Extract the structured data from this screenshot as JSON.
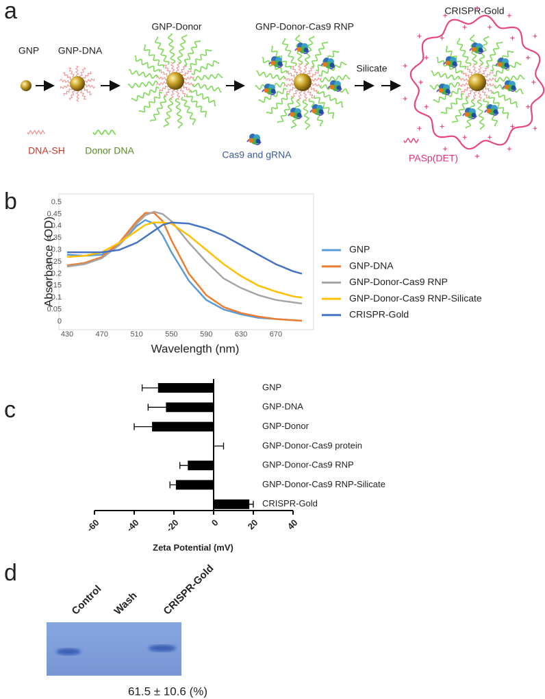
{
  "panel_labels": [
    "a",
    "b",
    "c",
    "d"
  ],
  "diagram": {
    "stages": [
      "GNP",
      "GNP-DNA",
      "GNP-Donor",
      "GNP-Donor-Cas9 RNP",
      "CRISPR-Gold"
    ],
    "arrow_label": "Silicate",
    "legend": [
      "DNA-SH",
      "Donor DNA",
      "Cas9 and gRNA",
      "PASp(DET)"
    ]
  },
  "chart_data": [
    {
      "type": "line",
      "ylabel": "Absorbance (OD)",
      "xlabel": "Wavelength (nm)",
      "x": [
        430,
        450,
        470,
        490,
        510,
        520,
        530,
        540,
        550,
        570,
        590,
        610,
        630,
        650,
        670,
        690,
        700
      ],
      "series": [
        {
          "name": "GNP",
          "color": "#5b9bd5",
          "values": [
            0.28,
            0.275,
            0.28,
            0.32,
            0.4,
            0.425,
            0.41,
            0.36,
            0.29,
            0.17,
            0.09,
            0.05,
            0.03,
            0.015,
            0.01,
            0.005,
            0.003
          ]
        },
        {
          "name": "GNP-DNA",
          "color": "#ed7d31",
          "values": [
            0.235,
            0.245,
            0.27,
            0.33,
            0.42,
            0.455,
            0.455,
            0.42,
            0.34,
            0.2,
            0.11,
            0.06,
            0.035,
            0.02,
            0.01,
            0.005,
            0.003
          ]
        },
        {
          "name": "GNP-Donor-Cas9 RNP",
          "color": "#a5a5a5",
          "values": [
            0.23,
            0.24,
            0.265,
            0.32,
            0.41,
            0.445,
            0.46,
            0.45,
            0.42,
            0.33,
            0.25,
            0.18,
            0.14,
            0.11,
            0.09,
            0.08,
            0.075
          ]
        },
        {
          "name": "GNP-Donor-Cas9 RNP-Silicate",
          "color": "#ffc000",
          "values": [
            0.27,
            0.275,
            0.29,
            0.33,
            0.38,
            0.405,
            0.415,
            0.415,
            0.41,
            0.36,
            0.3,
            0.24,
            0.19,
            0.15,
            0.125,
            0.105,
            0.1
          ]
        },
        {
          "name": "CRISPR-Gold",
          "color": "#4472c4",
          "values": [
            0.29,
            0.29,
            0.29,
            0.3,
            0.33,
            0.355,
            0.38,
            0.405,
            0.415,
            0.41,
            0.39,
            0.36,
            0.32,
            0.28,
            0.24,
            0.21,
            0.2
          ]
        }
      ],
      "xlim": [
        430,
        700
      ],
      "xticks": [
        430,
        470,
        510,
        550,
        590,
        630,
        670
      ],
      "ylim": [
        0,
        0.5
      ],
      "yticks": [
        0,
        0.05,
        0.1,
        0.15,
        0.2,
        0.25,
        0.3,
        0.35,
        0.4,
        0.45,
        0.5
      ],
      "legend": "right"
    },
    {
      "type": "hbar",
      "xlabel": "Zeta Potential (mV)",
      "color": "#000000",
      "categories": [
        "GNP",
        "GNP-DNA",
        "GNP-Donor",
        "GNP-Donor-Cas9 protein",
        "GNP-Donor-Cas9 RNP",
        "GNP-Donor-Cas9 RNP-Silicate",
        "CRISPR-Gold"
      ],
      "values": [
        -28,
        -24,
        -31,
        0,
        -13,
        -19,
        18
      ],
      "errors": [
        8,
        9,
        9,
        5,
        4,
        3,
        2
      ],
      "xlim": [
        -60,
        40
      ],
      "xticks": [
        -60,
        -40,
        -20,
        0,
        20,
        40
      ]
    }
  ],
  "gel": {
    "lanes": [
      "Control",
      "Wash",
      "CRISPR-Gold"
    ],
    "caption": "61.5 ± 10.6 (%)"
  }
}
